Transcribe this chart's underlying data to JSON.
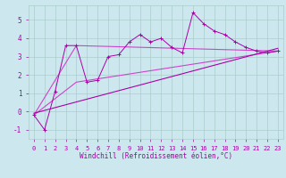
{
  "bg_color": "#cce8ee",
  "grid_color": "#aacccc",
  "line_color_main": "#aa00aa",
  "line_color_envelope": "#cc44cc",
  "xlabel": "Windchill (Refroidissement éolien,°C)",
  "xlim": [
    -0.5,
    23.5
  ],
  "ylim": [
    -1.5,
    5.8
  ],
  "xticks": [
    0,
    1,
    2,
    3,
    4,
    5,
    6,
    7,
    8,
    9,
    10,
    11,
    12,
    13,
    14,
    15,
    16,
    17,
    18,
    19,
    20,
    21,
    22,
    23
  ],
  "yticks": [
    -1,
    0,
    1,
    2,
    3,
    4,
    5
  ],
  "series1_x": [
    0,
    1,
    2,
    3,
    4,
    5,
    6,
    7,
    8,
    9,
    10,
    11,
    12,
    13,
    14,
    15,
    16,
    17,
    18,
    19,
    20,
    21,
    22,
    23
  ],
  "series1_y": [
    -0.2,
    -1.0,
    1.1,
    3.6,
    3.6,
    1.6,
    1.7,
    3.0,
    3.1,
    3.8,
    4.2,
    3.8,
    4.0,
    3.5,
    3.2,
    5.4,
    4.8,
    4.4,
    4.2,
    3.8,
    3.5,
    3.3,
    3.2,
    3.3
  ],
  "series2_x": [
    0,
    4,
    23
  ],
  "series2_y": [
    -0.2,
    3.6,
    3.3
  ],
  "series3_x": [
    0,
    4,
    23
  ],
  "series3_y": [
    -0.2,
    1.6,
    3.3
  ],
  "series4_x": [
    0,
    23
  ],
  "series4_y": [
    -0.1,
    3.45
  ],
  "tick_fontsize": 5,
  "xlabel_fontsize": 5.5
}
